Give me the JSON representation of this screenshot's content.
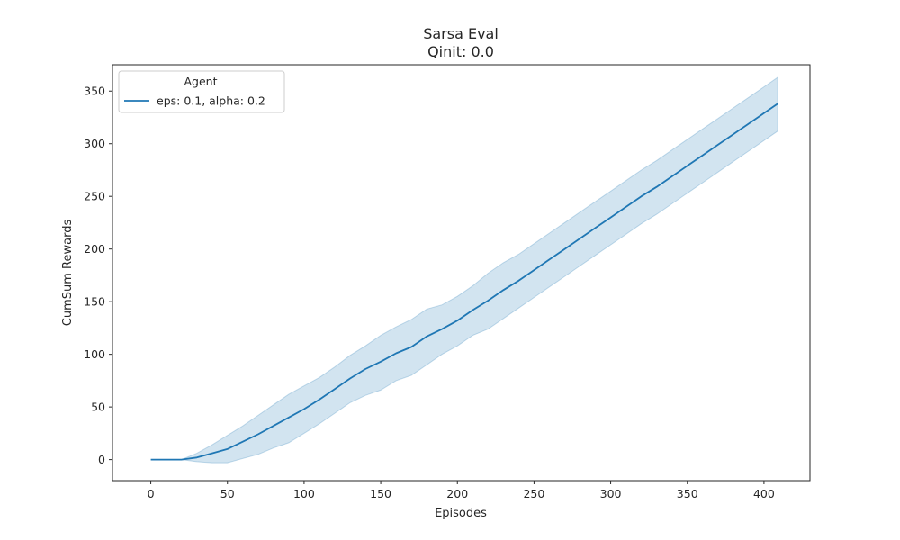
{
  "chart_data": {
    "type": "line",
    "title": "Sarsa Eval",
    "subtitle": "Qinit: 0.0",
    "xlabel": "Episodes",
    "ylabel": "CumSum Rewards",
    "xlim": [
      -25,
      430
    ],
    "ylim": [
      -20,
      375
    ],
    "xticks": [
      0,
      50,
      100,
      150,
      200,
      250,
      300,
      350,
      400
    ],
    "yticks": [
      0,
      50,
      100,
      150,
      200,
      250,
      300,
      350
    ],
    "grid": false,
    "legend": {
      "title": "Agent",
      "position": "top-left"
    },
    "series": [
      {
        "name": "eps: 0.1, alpha: 0.2",
        "color": "#1f77b4",
        "band_color": "#1f77b4",
        "x": [
          0,
          10,
          20,
          30,
          40,
          50,
          60,
          70,
          80,
          90,
          100,
          110,
          120,
          130,
          140,
          150,
          160,
          170,
          180,
          190,
          200,
          210,
          220,
          230,
          240,
          250,
          260,
          270,
          280,
          290,
          300,
          310,
          320,
          330,
          340,
          350,
          360,
          370,
          380,
          390,
          400,
          409
        ],
        "y": [
          0,
          0,
          0,
          2,
          6,
          10,
          17,
          24,
          32,
          40,
          48,
          57,
          67,
          77,
          86,
          93,
          101,
          107,
          117,
          124,
          132,
          142,
          151,
          161,
          170,
          180,
          190,
          200,
          210,
          220,
          230,
          240,
          250,
          259,
          269,
          279,
          289,
          299,
          309,
          319,
          329,
          338
        ],
        "lower": [
          0,
          0,
          0,
          -2,
          -3,
          -3,
          1,
          5,
          11,
          16,
          25,
          34,
          44,
          54,
          61,
          66,
          75,
          80,
          90,
          100,
          108,
          118,
          124,
          134,
          144,
          154,
          164,
          174,
          184,
          194,
          204,
          214,
          224,
          233,
          243,
          253,
          263,
          273,
          283,
          293,
          303,
          312
        ],
        "upper": [
          0,
          0,
          0,
          6,
          14,
          23,
          32,
          42,
          52,
          62,
          70,
          78,
          88,
          99,
          108,
          118,
          126,
          133,
          143,
          147,
          155,
          165,
          177,
          187,
          195,
          205,
          215,
          225,
          235,
          245,
          255,
          265,
          275,
          284,
          294,
          304,
          314,
          324,
          334,
          344,
          354,
          363
        ]
      }
    ]
  }
}
